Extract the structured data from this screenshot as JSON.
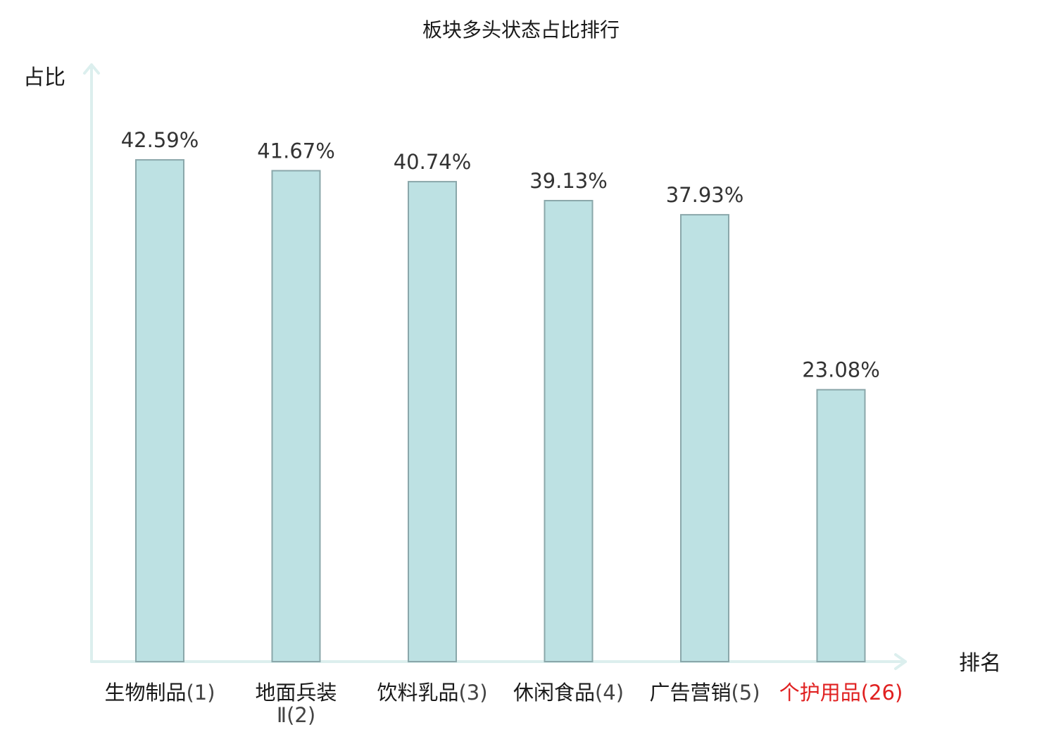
{
  "chart_data": {
    "type": "bar",
    "title": "板块多头状态占比排行",
    "xlabel": "排名",
    "ylabel": "占比",
    "categories": [
      {
        "name": "生物制品",
        "rank": "(1)"
      },
      {
        "name": "地面兵装",
        "name2": "Ⅱ(2)"
      },
      {
        "name": "饮料乳品",
        "rank": "(3)"
      },
      {
        "name": "休闲食品",
        "rank": "(4)"
      },
      {
        "name": "广告营销",
        "rank": "(5)"
      },
      {
        "name": "个护用品",
        "rank": "(26)",
        "highlight": true
      }
    ],
    "values": [
      42.59,
      41.67,
      40.74,
      39.13,
      37.93,
      23.08
    ],
    "value_labels": [
      "42.59%",
      "41.67%",
      "40.74%",
      "39.13%",
      "37.93%",
      "23.08%"
    ],
    "ylim": [
      0,
      46.6
    ],
    "grid": false,
    "bar_color": "#bde1e3",
    "bar_border_color": "#8aa7aa",
    "axis_color": "#dcefee",
    "highlight_color": "#e02020"
  }
}
